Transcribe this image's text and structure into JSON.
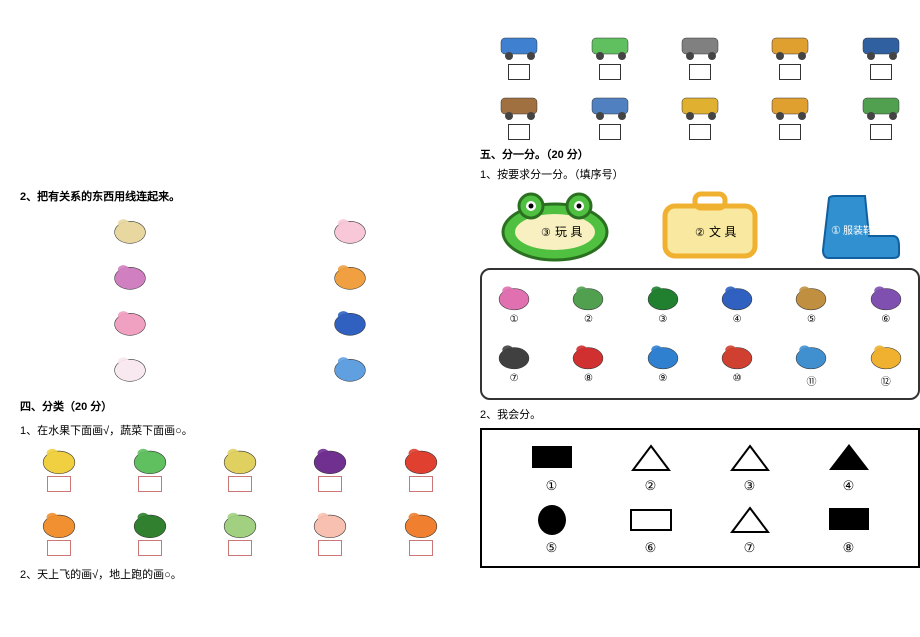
{
  "left": {
    "q2_heading": "2、把有关系的东西用线连起来。",
    "q4_heading": "四、分类（20 分）",
    "q4_1": "1、在水果下面画√，蔬菜下面画○。",
    "q4_2": "2、天上飞的画√，地上跑的画○。",
    "pair_items_left": [
      {
        "name": "toothpaste-icon",
        "fill": "#e8d8a0",
        "shape": "tube"
      },
      {
        "name": "toothbrush-icon",
        "fill": "#d080c0",
        "shape": "brush"
      },
      {
        "name": "shoes-icon",
        "fill": "#f0a0c0",
        "shape": "shoes"
      },
      {
        "name": "rabbit-icon",
        "fill": "#f8e8f0",
        "shape": "rabbit"
      }
    ],
    "pair_items_right": [
      {
        "name": "sock-icon",
        "fill": "#f8c8d8",
        "shape": "sock"
      },
      {
        "name": "carrot-icon",
        "fill": "#f0a040",
        "shape": "carrot"
      },
      {
        "name": "cup-icon",
        "fill": "#3060c0",
        "shape": "cup"
      },
      {
        "name": "plate-icon",
        "fill": "#60a0e0",
        "shape": "plate"
      }
    ],
    "fruit_row1": [
      {
        "name": "banana-icon",
        "fill": "#f0d040"
      },
      {
        "name": "peapod-icon",
        "fill": "#60c060"
      },
      {
        "name": "pear-icon",
        "fill": "#e0d060"
      },
      {
        "name": "eggplant-icon",
        "fill": "#703090"
      },
      {
        "name": "tomato-icon",
        "fill": "#e04030"
      }
    ],
    "fruit_row2": [
      {
        "name": "orange-icon",
        "fill": "#f09030"
      },
      {
        "name": "watermelon-icon",
        "fill": "#308030"
      },
      {
        "name": "cabbage-icon",
        "fill": "#a0d080"
      },
      {
        "name": "peach-icon",
        "fill": "#f8c0b0"
      },
      {
        "name": "carrot2-icon",
        "fill": "#f08030"
      }
    ]
  },
  "right": {
    "vehicles_row1": [
      {
        "name": "airplane-icon",
        "fill": "#4080d0"
      },
      {
        "name": "truck-icon",
        "fill": "#60c060"
      },
      {
        "name": "helicopter-icon",
        "fill": "#808080"
      },
      {
        "name": "bus-icon",
        "fill": "#e0a030"
      },
      {
        "name": "grasshopper-icon",
        "fill": "#3060a0"
      }
    ],
    "vehicles_row2": [
      {
        "name": "boat-icon",
        "fill": "#a07040"
      },
      {
        "name": "roller-icon",
        "fill": "#5080c0"
      },
      {
        "name": "excavator-icon",
        "fill": "#e0b030"
      },
      {
        "name": "jet-icon",
        "fill": "#e0a030"
      },
      {
        "name": "tractor-icon",
        "fill": "#50a050"
      }
    ],
    "q5_heading": "五、分一分。（20 分）",
    "q5_1": "1、按要求分一分。（填序号）",
    "q5_2": "2、我会分。",
    "categories": [
      {
        "name": "frog-category",
        "label": "玩 具",
        "num": "③",
        "fill": "#50c040",
        "inner": "#f8f0c0"
      },
      {
        "name": "bag-category",
        "label": "文 具",
        "num": "②",
        "fill": "#f0b030",
        "inner": "#f8e8a0"
      },
      {
        "name": "boot-category",
        "label": "服装鞋帽",
        "num": "①",
        "fill": "#3090d0",
        "inner": "#3090d0"
      }
    ],
    "items": [
      {
        "n": "①",
        "name": "jacket-icon",
        "fill": "#e070b0"
      },
      {
        "n": "②",
        "name": "mixer-truck-icon",
        "fill": "#50a050"
      },
      {
        "n": "③",
        "name": "pencil-icon",
        "fill": "#208030"
      },
      {
        "n": "④",
        "name": "sharpener-icon",
        "fill": "#3060c0"
      },
      {
        "n": "⑤",
        "name": "bear-icon",
        "fill": "#c09040"
      },
      {
        "n": "⑥",
        "name": "pencilcase-icon",
        "fill": "#8050b0"
      },
      {
        "n": "⑦",
        "name": "calculator-icon",
        "fill": "#404040"
      },
      {
        "n": "⑧",
        "name": "cap-icon",
        "fill": "#d03030"
      },
      {
        "n": "⑨",
        "name": "ruler-icon",
        "fill": "#3080d0"
      },
      {
        "n": "⑩",
        "name": "sneakers-icon",
        "fill": "#d04030"
      },
      {
        "n": "⑪",
        "name": "pants-icon",
        "fill": "#4090d0"
      },
      {
        "n": "⑫",
        "name": "chick-icon",
        "fill": "#f0b030"
      }
    ],
    "shapes": [
      {
        "n": "①",
        "type": "rect-fill",
        "fill": "#000"
      },
      {
        "n": "②",
        "type": "tri-outline",
        "fill": "#000"
      },
      {
        "n": "③",
        "type": "tri-outline",
        "fill": "#000"
      },
      {
        "n": "④",
        "type": "tri-fill",
        "fill": "#000"
      },
      {
        "n": "⑤",
        "type": "ellipse-fill",
        "fill": "#000"
      },
      {
        "n": "⑥",
        "type": "rect-outline",
        "fill": "#000"
      },
      {
        "n": "⑦",
        "type": "tri-outline",
        "fill": "#000"
      },
      {
        "n": "⑧",
        "type": "rect-fill",
        "fill": "#000"
      }
    ]
  }
}
